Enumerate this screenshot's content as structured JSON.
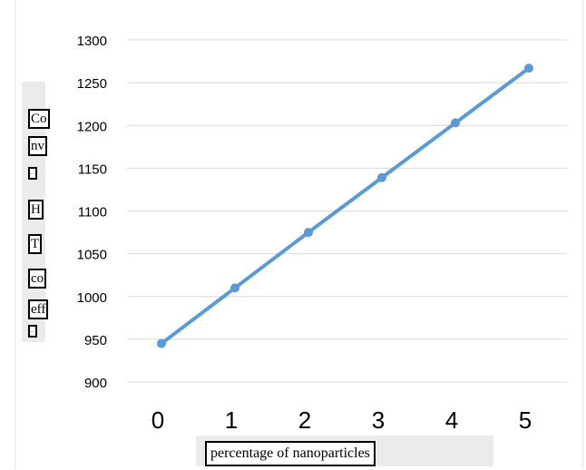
{
  "chart_data": {
    "type": "line",
    "title": "",
    "xlabel": "percentage of nanoparticles",
    "ylabel_fragments": [
      "Co",
      "nv",
      ".",
      "H",
      "T",
      "co",
      "eff",
      "."
    ],
    "x": [
      0,
      1,
      2,
      3,
      4,
      5
    ],
    "series": [
      {
        "values": [
          945,
          1010,
          1075,
          1139,
          1203,
          1267
        ],
        "color": "#5b9bd5"
      }
    ],
    "ylim": [
      900,
      1300
    ],
    "yticks": [
      900,
      950,
      1000,
      1050,
      1100,
      1150,
      1200,
      1250,
      1300
    ],
    "grid": true,
    "legend": "none"
  }
}
